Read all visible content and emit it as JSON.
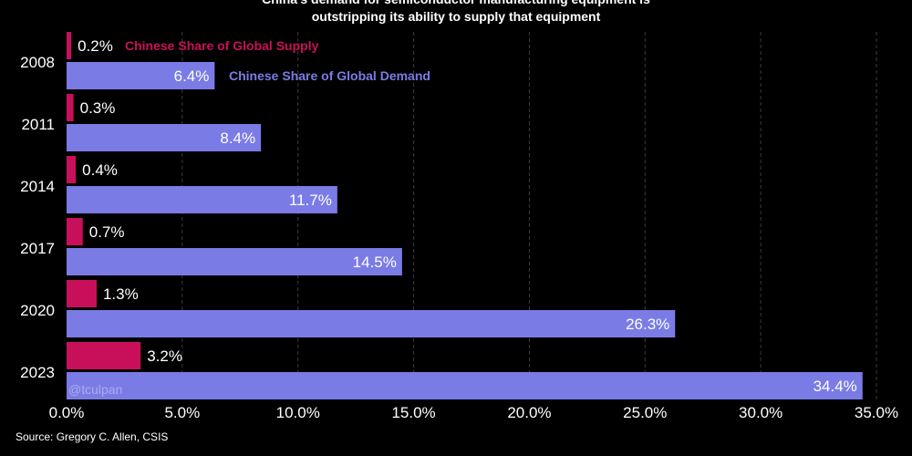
{
  "title_lines": [
    "China's demand for semiconductor manufacturing equipment is",
    "outstripping its ability to supply that equipment"
  ],
  "source": "Source: Gregory C. Allen, CSIS",
  "watermark": "@tculpan",
  "colors": {
    "background": "#000000",
    "supply": "#c8105a",
    "demand": "#7b7be6",
    "grid": "#3a3a3a",
    "text": "#ffffff"
  },
  "chart_data": {
    "type": "bar",
    "orientation": "horizontal",
    "title": "China's demand for semiconductor manufacturing equipment is outstripping its ability to supply that equipment",
    "categories": [
      "2008",
      "2011",
      "2014",
      "2017",
      "2020",
      "2023"
    ],
    "series": [
      {
        "name": "Chinese Share of Global Supply",
        "values": [
          0.2,
          0.3,
          0.4,
          0.7,
          1.3,
          3.2
        ],
        "labels": [
          "0.2%",
          "0.3%",
          "0.4%",
          "0.7%",
          "1.3%",
          "3.2%"
        ]
      },
      {
        "name": "Chinese Share of Global Demand",
        "values": [
          6.4,
          8.4,
          11.7,
          14.5,
          26.3,
          34.4
        ],
        "labels": [
          "6.4%",
          "8.4%",
          "11.7%",
          "14.5%",
          "26.3%",
          "34.4%"
        ]
      }
    ],
    "x_ticks": [
      0,
      5,
      10,
      15,
      20,
      25,
      30,
      35
    ],
    "x_tick_labels": [
      "0.0%",
      "5.0%",
      "10.0%",
      "15.0%",
      "20.0%",
      "25.0%",
      "30.0%",
      "35.0%"
    ],
    "xlim": [
      0,
      35
    ],
    "grid": true,
    "legend": "inline next to the 2008 bars"
  }
}
